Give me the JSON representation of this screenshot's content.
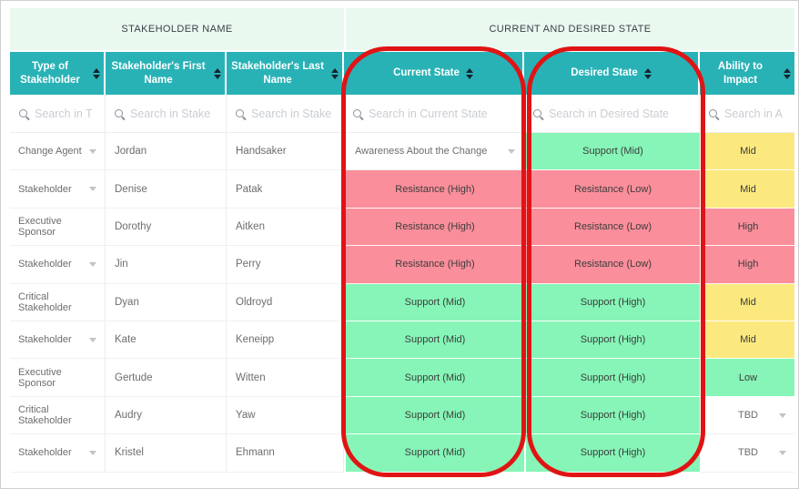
{
  "colors": {
    "header_teal": "#29b2b6",
    "group_header_bg": "#e9f9f0",
    "status_green": "#86f5b7",
    "status_pink": "#fa8e9b",
    "status_yellow": "#fbe97f",
    "annotation_red": "#e01414"
  },
  "table": {
    "group_headers": [
      "STAKEHOLDER NAME",
      "CURRENT AND DESIRED STATE"
    ],
    "columns": [
      {
        "label": "Type of Stakeholder",
        "search_placeholder": "Search in T"
      },
      {
        "label": "Stakeholder's First Name",
        "search_placeholder": "Search in Stake"
      },
      {
        "label": "Stakeholder's Last Name",
        "search_placeholder": "Search in Stake"
      },
      {
        "label": "Current State",
        "search_placeholder": "Search in Current State"
      },
      {
        "label": "Desired State",
        "search_placeholder": "Search in Desired State"
      },
      {
        "label": "Ability to Impact",
        "search_placeholder": "Search in A"
      }
    ],
    "rows": [
      {
        "type": "Change Agent",
        "first": "Jordan",
        "last": "Handsaker",
        "current": {
          "text": "Awareness About the Change",
          "status": "none"
        },
        "desired": {
          "text": "Support (Mid)",
          "status": "green"
        },
        "ability": {
          "text": "Mid",
          "status": "yellow"
        }
      },
      {
        "type": "Stakeholder",
        "first": "Denise",
        "last": "Patak",
        "current": {
          "text": "Resistance (High)",
          "status": "pink"
        },
        "desired": {
          "text": "Resistance (Low)",
          "status": "pink"
        },
        "ability": {
          "text": "Mid",
          "status": "yellow"
        }
      },
      {
        "type": "Executive Sponsor",
        "first": "Dorothy",
        "last": "Aitken",
        "current": {
          "text": "Resistance (High)",
          "status": "pink"
        },
        "desired": {
          "text": "Resistance (Low)",
          "status": "pink"
        },
        "ability": {
          "text": "High",
          "status": "pink"
        }
      },
      {
        "type": "Stakeholder",
        "first": "Jin",
        "last": "Perry",
        "current": {
          "text": "Resistance (High)",
          "status": "pink"
        },
        "desired": {
          "text": "Resistance (Low)",
          "status": "pink"
        },
        "ability": {
          "text": "High",
          "status": "pink"
        }
      },
      {
        "type": "Critical Stakeholder",
        "first": "Dyan",
        "last": "Oldroyd",
        "current": {
          "text": "Support (Mid)",
          "status": "green"
        },
        "desired": {
          "text": "Support (High)",
          "status": "green"
        },
        "ability": {
          "text": "Mid",
          "status": "yellow"
        }
      },
      {
        "type": "Stakeholder",
        "first": "Kate",
        "last": "Keneipp",
        "current": {
          "text": "Support (Mid)",
          "status": "green"
        },
        "desired": {
          "text": "Support (High)",
          "status": "green"
        },
        "ability": {
          "text": "Mid",
          "status": "yellow"
        }
      },
      {
        "type": "Executive Sponsor",
        "first": "Gertude",
        "last": "Witten",
        "current": {
          "text": "Support (Mid)",
          "status": "green"
        },
        "desired": {
          "text": "Support (High)",
          "status": "green"
        },
        "ability": {
          "text": "Low",
          "status": "green"
        }
      },
      {
        "type": "Critical Stakeholder",
        "first": "Audry",
        "last": "Yaw",
        "current": {
          "text": "Support (Mid)",
          "status": "green"
        },
        "desired": {
          "text": "Support (High)",
          "status": "green"
        },
        "ability": {
          "text": "TBD",
          "status": "none"
        }
      },
      {
        "type": "Stakeholder",
        "first": "Kristel",
        "last": "Ehmann",
        "current": {
          "text": "Support (Mid)",
          "status": "green"
        },
        "desired": {
          "text": "Support (High)",
          "status": "green"
        },
        "ability": {
          "text": "TBD",
          "status": "none"
        }
      }
    ]
  }
}
